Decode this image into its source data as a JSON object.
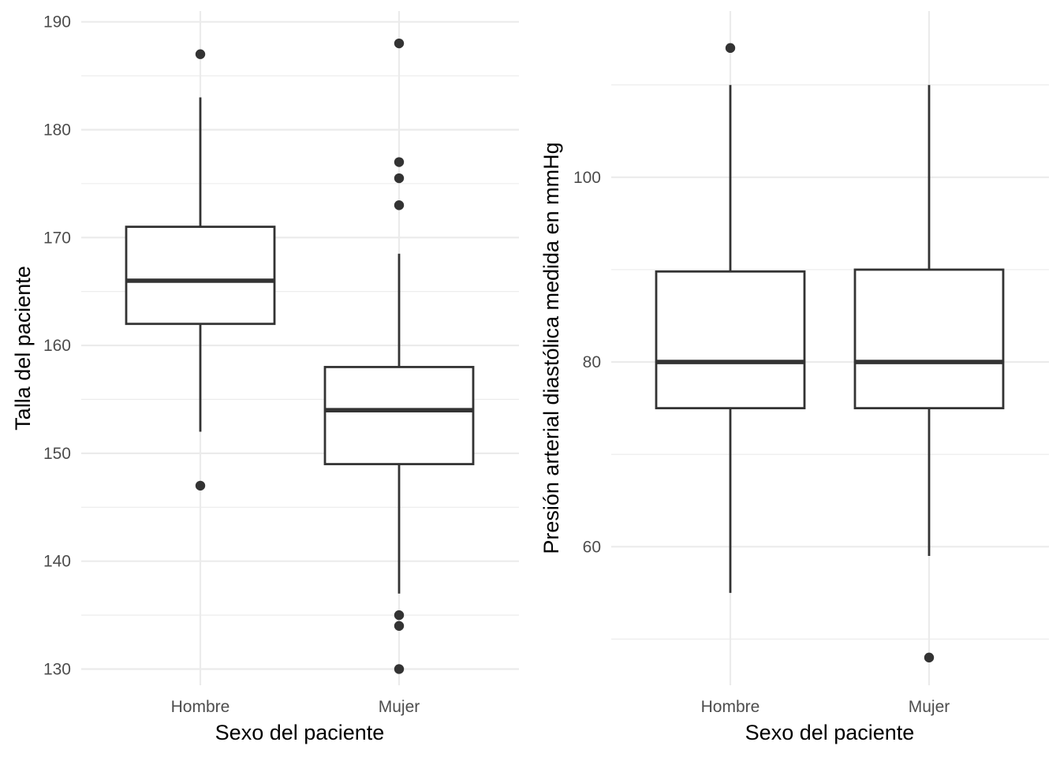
{
  "chart_data": [
    {
      "type": "boxplot",
      "xlabel": "Sexo del paciente",
      "ylabel": "Talla del paciente",
      "categories": [
        "Hombre",
        "Mujer"
      ],
      "ylim": [
        128.5,
        191
      ],
      "yticks": [
        130,
        140,
        150,
        160,
        170,
        180,
        190
      ],
      "yticks_minor": [
        135,
        145,
        155,
        165,
        175,
        185
      ],
      "tick_labels": [
        "130",
        "140",
        "150",
        "160",
        "170",
        "180",
        "190"
      ],
      "boxes": [
        {
          "category": "Hombre",
          "whisker_low": 152,
          "q1": 162,
          "median": 166,
          "q3": 171,
          "whisker_high": 183,
          "outliers": [
            147,
            187
          ]
        },
        {
          "category": "Mujer",
          "whisker_low": 137,
          "q1": 149,
          "median": 154,
          "q3": 158,
          "whisker_high": 168.5,
          "outliers": [
            130,
            134,
            135,
            173,
            175.5,
            177,
            188
          ]
        }
      ]
    },
    {
      "type": "boxplot",
      "xlabel": "Sexo del paciente",
      "ylabel": "Presión arterial diastólica medida en mmHg",
      "categories": [
        "Hombre",
        "Mujer"
      ],
      "ylim": [
        45,
        118
      ],
      "yticks": [
        60,
        80,
        100
      ],
      "yticks_minor": [
        50,
        70,
        90,
        110
      ],
      "tick_labels": [
        "60",
        "80",
        "100"
      ],
      "boxes": [
        {
          "category": "Hombre",
          "whisker_low": 55,
          "q1": 75,
          "median": 80,
          "q3": 89.8,
          "whisker_high": 110,
          "outliers": [
            114
          ]
        },
        {
          "category": "Mujer",
          "whisker_low": 59,
          "q1": 75,
          "median": 80,
          "q3": 90,
          "whisker_high": 110,
          "outliers": [
            48
          ]
        }
      ]
    }
  ]
}
